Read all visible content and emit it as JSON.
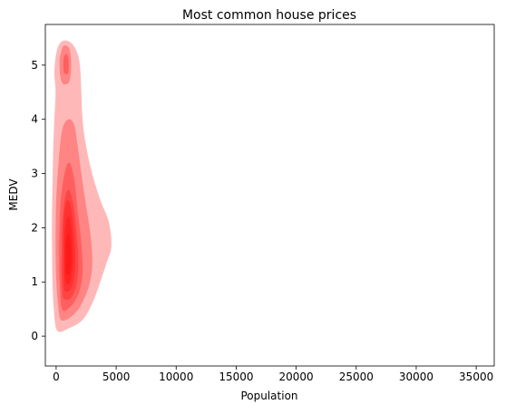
{
  "chart_data": {
    "type": "kde-density",
    "title": "Most common house prices",
    "xlabel": "Population",
    "ylabel": "MEDV",
    "xlim": [
      -900,
      36500
    ],
    "ylim": [
      -0.55,
      5.75
    ],
    "x_ticks": [
      0,
      5000,
      10000,
      15000,
      20000,
      25000,
      30000,
      35000
    ],
    "y_ticks": [
      0,
      1,
      2,
      3,
      4,
      5
    ],
    "grid": false,
    "legend": "none",
    "fill_color": "#ff0000",
    "density_contours": [
      {
        "level": 1,
        "points": [
          [
            100,
            0.1
          ],
          [
            1100,
            0.15
          ],
          [
            2200,
            0.3
          ],
          [
            3000,
            0.6
          ],
          [
            3600,
            0.95
          ],
          [
            4200,
            1.35
          ],
          [
            4600,
            1.65
          ],
          [
            4400,
            2.1
          ],
          [
            3700,
            2.5
          ],
          [
            3000,
            3.0
          ],
          [
            2500,
            3.5
          ],
          [
            2200,
            4.0
          ],
          [
            2100,
            4.5
          ],
          [
            2000,
            4.95
          ],
          [
            1800,
            5.2
          ],
          [
            1300,
            5.4
          ],
          [
            600,
            5.45
          ],
          [
            100,
            5.3
          ],
          [
            -150,
            4.9
          ],
          [
            -50,
            4.5
          ],
          [
            -150,
            4.0
          ],
          [
            -250,
            3.4
          ],
          [
            -300,
            2.8
          ],
          [
            -350,
            2.2
          ],
          [
            -350,
            1.6
          ],
          [
            -300,
            1.0
          ],
          [
            -200,
            0.5
          ]
        ]
      },
      {
        "level": 2,
        "points": [
          [
            400,
            0.3
          ],
          [
            1200,
            0.35
          ],
          [
            2000,
            0.55
          ],
          [
            2700,
            0.9
          ],
          [
            3000,
            1.3
          ],
          [
            2900,
            1.8
          ],
          [
            2500,
            2.4
          ],
          [
            2100,
            3.0
          ],
          [
            1800,
            3.5
          ],
          [
            1500,
            3.9
          ],
          [
            1000,
            4.0
          ],
          [
            500,
            3.8
          ],
          [
            200,
            3.2
          ],
          [
            0,
            2.5
          ],
          [
            -50,
            1.8
          ],
          [
            0,
            1.1
          ],
          [
            150,
            0.6
          ]
        ]
      },
      {
        "level": 2,
        "points": [
          [
            600,
            4.65
          ],
          [
            1100,
            4.7
          ],
          [
            1250,
            5.0
          ],
          [
            1100,
            5.3
          ],
          [
            600,
            5.35
          ],
          [
            300,
            5.1
          ],
          [
            350,
            4.8
          ]
        ]
      },
      {
        "level": 3,
        "points": [
          [
            500,
            0.5
          ],
          [
            1200,
            0.55
          ],
          [
            1900,
            0.8
          ],
          [
            2200,
            1.2
          ],
          [
            2100,
            1.7
          ],
          [
            1800,
            2.3
          ],
          [
            1500,
            2.9
          ],
          [
            1100,
            3.2
          ],
          [
            700,
            3.0
          ],
          [
            350,
            2.4
          ],
          [
            250,
            1.6
          ],
          [
            300,
            1.0
          ]
        ]
      },
      {
        "level": 3,
        "points": [
          [
            700,
            4.85
          ],
          [
            1000,
            4.85
          ],
          [
            1050,
            5.05
          ],
          [
            900,
            5.2
          ],
          [
            650,
            5.15
          ],
          [
            600,
            4.95
          ]
        ]
      },
      {
        "level": 4,
        "points": [
          [
            600,
            0.7
          ],
          [
            1200,
            0.7
          ],
          [
            1700,
            0.95
          ],
          [
            1850,
            1.4
          ],
          [
            1700,
            1.9
          ],
          [
            1450,
            2.4
          ],
          [
            1050,
            2.7
          ],
          [
            700,
            2.5
          ],
          [
            500,
            2.0
          ],
          [
            450,
            1.3
          ],
          [
            500,
            0.9
          ]
        ]
      },
      {
        "level": 5,
        "points": [
          [
            700,
            0.85
          ],
          [
            1150,
            0.85
          ],
          [
            1500,
            1.1
          ],
          [
            1600,
            1.5
          ],
          [
            1450,
            2.0
          ],
          [
            1200,
            2.4
          ],
          [
            900,
            2.5
          ],
          [
            650,
            2.2
          ],
          [
            600,
            1.6
          ],
          [
            620,
            1.1
          ]
        ]
      },
      {
        "level": 6,
        "points": [
          [
            800,
            1.0
          ],
          [
            1150,
            1.0
          ],
          [
            1350,
            1.3
          ],
          [
            1350,
            1.7
          ],
          [
            1200,
            2.1
          ],
          [
            950,
            2.2
          ],
          [
            750,
            1.9
          ],
          [
            700,
            1.4
          ]
        ]
      },
      {
        "level": 7,
        "points": [
          [
            850,
            1.15
          ],
          [
            1100,
            1.15
          ],
          [
            1250,
            1.4
          ],
          [
            1200,
            1.75
          ],
          [
            1000,
            1.9
          ],
          [
            820,
            1.7
          ],
          [
            780,
            1.35
          ]
        ]
      }
    ]
  }
}
